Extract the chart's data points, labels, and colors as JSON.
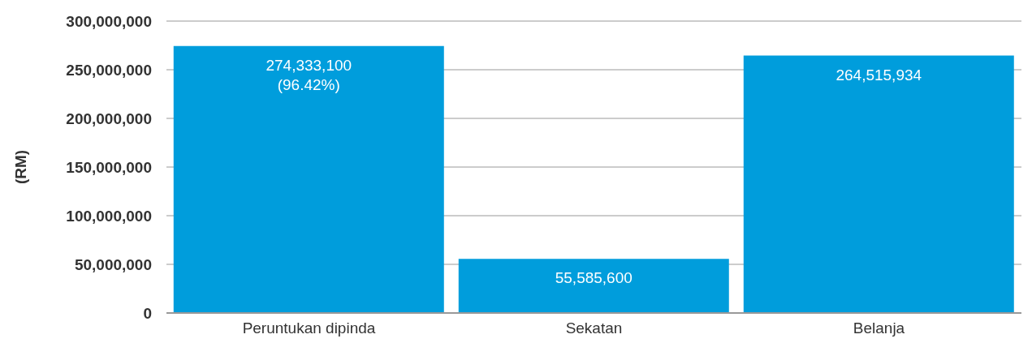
{
  "chart_data": {
    "type": "bar",
    "ylabel": "(RM)",
    "categories": [
      "Peruntukan dipinda",
      "Sekatan",
      "Belanja"
    ],
    "values": [
      274333100,
      55585600,
      264515934
    ],
    "value_labels": [
      "274,333,100\n(96.42%)",
      "55,585,600",
      "264,515,934"
    ],
    "color": "#009ddc",
    "ylim": [
      0,
      300000000
    ],
    "yticks": [
      0,
      {
        "value": 50000000,
        "label": "50,000,000"
      },
      {
        "value": 100000000,
        "label": "100,000,000"
      },
      {
        "value": 150000000,
        "label": "150,000,000"
      },
      {
        "value": 200000000,
        "label": "200,000,000"
      },
      {
        "value": 250000000,
        "label": "250,000,000"
      },
      {
        "value": 300000000,
        "label": "300,000,000"
      }
    ],
    "grid": "y",
    "legend": false
  }
}
